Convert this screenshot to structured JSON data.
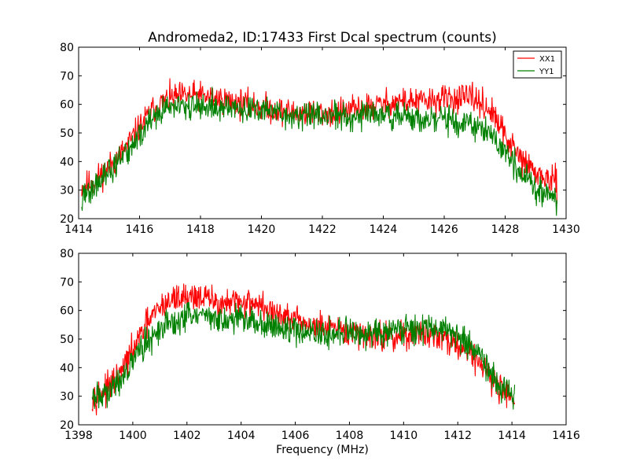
{
  "figure": {
    "title": "Andromeda2, ID:17433 First Dcal spectrum (counts)"
  },
  "colors": {
    "XX1": "#ff0000",
    "YY1": "#008000",
    "axes": "#000000",
    "background": "#ffffff"
  },
  "chart_data": [
    {
      "type": "line",
      "title": "Andromeda2, ID:17433 First Dcal spectrum (counts)",
      "xlabel": "",
      "ylabel": "",
      "xlim": [
        1414,
        1430
      ],
      "ylim": [
        20,
        80
      ],
      "xticks": [
        "1414",
        "1416",
        "1418",
        "1420",
        "1422",
        "1424",
        "1426",
        "1428",
        "1430"
      ],
      "yticks": [
        "20",
        "30",
        "40",
        "50",
        "60",
        "70",
        "80"
      ],
      "grid": false,
      "legend": {
        "placement": "top-right",
        "entries": [
          "XX1",
          "YY1"
        ]
      },
      "x_range": [
        1414.1,
        1429.7
      ],
      "series": [
        {
          "name": "XX1",
          "color": "#ff0000",
          "x": [
            1414.1,
            1414.5,
            1415.0,
            1415.5,
            1416.0,
            1416.5,
            1417.0,
            1417.5,
            1418.0,
            1418.5,
            1419.0,
            1419.5,
            1420.0,
            1420.5,
            1421.0,
            1421.5,
            1422.0,
            1422.5,
            1423.0,
            1423.5,
            1424.0,
            1424.5,
            1425.0,
            1425.5,
            1426.0,
            1426.5,
            1427.0,
            1427.5,
            1428.0,
            1428.5,
            1429.0,
            1429.7
          ],
          "values": [
            31,
            33,
            38,
            44,
            52,
            59,
            62,
            63,
            63,
            62,
            61,
            60,
            59,
            58,
            57,
            57,
            57,
            57,
            58,
            59,
            60,
            61,
            61,
            61,
            62,
            62,
            62,
            58,
            49,
            41,
            36,
            32
          ],
          "noise": 8
        },
        {
          "name": "YY1",
          "color": "#008000",
          "x": [
            1414.1,
            1414.5,
            1415.0,
            1415.5,
            1416.0,
            1416.5,
            1417.0,
            1417.5,
            1418.0,
            1418.5,
            1419.0,
            1419.5,
            1420.0,
            1420.5,
            1421.0,
            1421.5,
            1422.0,
            1422.5,
            1423.0,
            1423.5,
            1424.0,
            1424.5,
            1425.0,
            1425.5,
            1426.0,
            1426.5,
            1427.0,
            1427.5,
            1428.0,
            1428.5,
            1429.0,
            1429.7
          ],
          "values": [
            27,
            31,
            36,
            42,
            49,
            56,
            59,
            59,
            59,
            59,
            59,
            58,
            58,
            57,
            56,
            56,
            56,
            56,
            56,
            56,
            57,
            56,
            55,
            54,
            55,
            54,
            52,
            50,
            43,
            36,
            31,
            27
          ],
          "noise": 8
        }
      ]
    },
    {
      "type": "line",
      "title": "",
      "xlabel": "Frequency (MHz)",
      "ylabel": "",
      "xlim": [
        1398,
        1416
      ],
      "ylim": [
        20,
        80
      ],
      "xticks": [
        "1398",
        "1400",
        "1402",
        "1404",
        "1406",
        "1408",
        "1410",
        "1412",
        "1414",
        "1416"
      ],
      "yticks": [
        "20",
        "30",
        "40",
        "50",
        "60",
        "70",
        "80"
      ],
      "grid": false,
      "x_range": [
        1398.5,
        1414.1
      ],
      "series": [
        {
          "name": "XX1",
          "color": "#ff0000",
          "x": [
            1398.5,
            1399.0,
            1399.5,
            1400.0,
            1400.5,
            1401.0,
            1401.5,
            1402.0,
            1402.5,
            1403.0,
            1403.5,
            1404.0,
            1404.5,
            1405.0,
            1405.5,
            1406.0,
            1406.5,
            1407.0,
            1407.5,
            1408.0,
            1408.5,
            1409.0,
            1409.5,
            1410.0,
            1410.5,
            1411.0,
            1411.5,
            1412.0,
            1412.5,
            1413.0,
            1413.5,
            1414.1
          ],
          "values": [
            30,
            32,
            37,
            46,
            55,
            61,
            64,
            65,
            65,
            63,
            62,
            63,
            63,
            60,
            58,
            56,
            55,
            54,
            53,
            52,
            52,
            51,
            51,
            51,
            52,
            52,
            51,
            48,
            45,
            40,
            33,
            30
          ],
          "noise": 8
        },
        {
          "name": "YY1",
          "color": "#008000",
          "x": [
            1398.5,
            1399.0,
            1399.5,
            1400.0,
            1400.5,
            1401.0,
            1401.5,
            1402.0,
            1402.5,
            1403.0,
            1403.5,
            1404.0,
            1404.5,
            1405.0,
            1405.5,
            1406.0,
            1406.5,
            1407.0,
            1407.5,
            1408.0,
            1408.5,
            1409.0,
            1409.5,
            1410.0,
            1410.5,
            1411.0,
            1411.5,
            1412.0,
            1412.5,
            1413.0,
            1413.5,
            1414.1
          ],
          "values": [
            29,
            31,
            35,
            43,
            49,
            53,
            56,
            58,
            58,
            57,
            57,
            57,
            56,
            55,
            54,
            53,
            52,
            52,
            52,
            52,
            52,
            52,
            53,
            54,
            54,
            54,
            54,
            51,
            48,
            41,
            34,
            30
          ],
          "noise": 8
        }
      ]
    }
  ]
}
